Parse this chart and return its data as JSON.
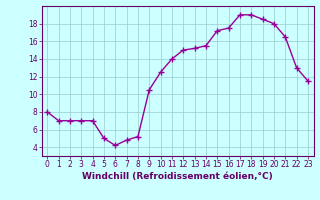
{
  "x": [
    0,
    1,
    2,
    3,
    4,
    5,
    6,
    7,
    8,
    9,
    10,
    11,
    12,
    13,
    14,
    15,
    16,
    17,
    18,
    19,
    20,
    21,
    22,
    23
  ],
  "y": [
    8,
    7,
    7,
    7,
    7,
    5,
    4.2,
    4.8,
    5.2,
    10.5,
    12.5,
    14,
    15,
    15.2,
    15.5,
    17.2,
    17.5,
    19,
    19,
    18.5,
    18,
    16.5,
    13,
    11.5
  ],
  "line_color": "#990099",
  "marker_color": "#990099",
  "bg_color": "#ccffff",
  "grid_color": "#99cccc",
  "xlabel": "Windchill (Refroidissement éolien,°C)",
  "ylim": [
    3,
    20
  ],
  "xlim": [
    -0.5,
    23.5
  ],
  "yticks": [
    4,
    6,
    8,
    10,
    12,
    14,
    16,
    18
  ],
  "xticks": [
    0,
    1,
    2,
    3,
    4,
    5,
    6,
    7,
    8,
    9,
    10,
    11,
    12,
    13,
    14,
    15,
    16,
    17,
    18,
    19,
    20,
    21,
    22,
    23
  ],
  "xtick_labels": [
    "0",
    "1",
    "2",
    "3",
    "4",
    "5",
    "6",
    "7",
    "8",
    "9",
    "10",
    "11",
    "12",
    "13",
    "14",
    "15",
    "16",
    "17",
    "18",
    "19",
    "20",
    "21",
    "22",
    "23"
  ],
  "axis_color": "#660066",
  "tick_color": "#660066",
  "label_fontsize": 6.5,
  "tick_fontsize": 5.5,
  "linewidth": 1.0,
  "markersize": 2.2
}
